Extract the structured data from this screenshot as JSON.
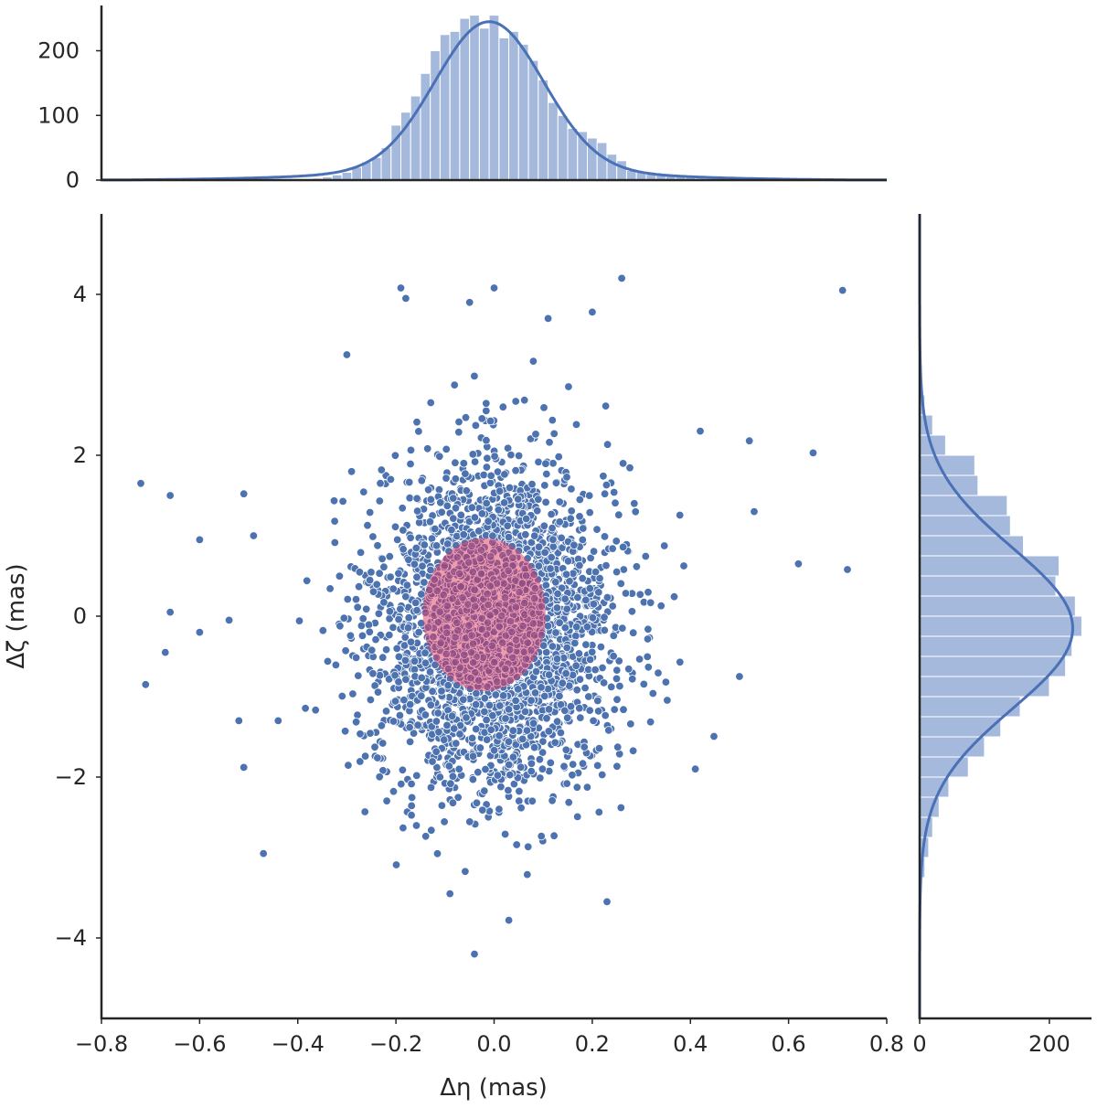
{
  "colors": {
    "points": "#4c72b0",
    "point_edge": "#ffffff",
    "hist_bars": "#a4b9dc",
    "kde_line": "#4a70b6",
    "ellipse_fill": "#e8788f",
    "axes": "#262626",
    "background": "#ffffff"
  },
  "chart_data": [
    {
      "type": "scatter",
      "panel": "joint",
      "xlabel": "Δη (mas)",
      "ylabel": "Δζ (mas)",
      "xlim": [
        -0.8,
        0.8
      ],
      "ylim": [
        -5,
        5
      ],
      "xticks": [
        "−0.8",
        "−0.6",
        "−0.4",
        "−0.2",
        "0.0",
        "0.2",
        "0.4",
        "0.6",
        "0.8"
      ],
      "yticks": [
        "−4",
        "−2",
        "0",
        "2",
        "4"
      ],
      "grid": false,
      "distribution": {
        "n_points": 3000,
        "x_mean": 0.0,
        "x_sd": 0.12,
        "y_mean": -0.15,
        "y_sd": 1.0
      },
      "outliers": [
        [
          -0.72,
          1.65
        ],
        [
          -0.71,
          -0.85
        ],
        [
          -0.66,
          1.5
        ],
        [
          -0.66,
          0.05
        ],
        [
          -0.67,
          -0.45
        ],
        [
          -0.6,
          -0.2
        ],
        [
          -0.6,
          0.95
        ],
        [
          -0.54,
          -0.05
        ],
        [
          -0.52,
          -1.3
        ],
        [
          -0.51,
          1.52
        ],
        [
          -0.51,
          -1.88
        ],
        [
          -0.49,
          1.0
        ],
        [
          -0.3,
          3.25
        ],
        [
          -0.19,
          4.08
        ],
        [
          -0.18,
          3.95
        ],
        [
          0.0,
          4.08
        ],
        [
          -0.05,
          3.9
        ],
        [
          0.2,
          3.78
        ],
        [
          0.26,
          4.2
        ],
        [
          0.71,
          4.05
        ],
        [
          0.11,
          3.7
        ],
        [
          0.42,
          2.3
        ],
        [
          0.52,
          2.18
        ],
        [
          0.65,
          2.03
        ],
        [
          0.53,
          1.3
        ],
        [
          0.62,
          0.65
        ],
        [
          0.72,
          0.58
        ],
        [
          0.5,
          -0.75
        ],
        [
          -0.04,
          -4.2
        ],
        [
          0.03,
          -3.78
        ],
        [
          0.23,
          -3.55
        ],
        [
          -0.09,
          -3.45
        ],
        [
          -0.44,
          -1.3
        ],
        [
          0.41,
          -1.9
        ]
      ],
      "highlight_ellipse": {
        "center": [
          -0.02,
          0.02
        ],
        "semi_axis_x": 0.125,
        "semi_axis_y": 0.95
      }
    },
    {
      "type": "bar",
      "panel": "marginal-x",
      "bin_width": 0.02,
      "x": [
        -0.36,
        -0.34,
        -0.32,
        -0.3,
        -0.28,
        -0.26,
        -0.24,
        -0.22,
        -0.2,
        -0.18,
        -0.16,
        -0.14,
        -0.12,
        -0.1,
        -0.08,
        -0.06,
        -0.04,
        -0.02,
        0.0,
        0.02,
        0.04,
        0.06,
        0.08,
        0.1,
        0.12,
        0.14,
        0.16,
        0.18,
        0.2,
        0.22,
        0.24,
        0.26,
        0.28,
        0.3,
        0.32,
        0.34,
        0.36,
        0.38,
        0.4,
        0.42,
        0.44
      ],
      "values": [
        3,
        5,
        8,
        12,
        20,
        28,
        35,
        50,
        85,
        105,
        130,
        165,
        200,
        225,
        230,
        250,
        255,
        235,
        255,
        220,
        230,
        210,
        185,
        155,
        120,
        100,
        80,
        75,
        65,
        58,
        40,
        30,
        15,
        12,
        10,
        8,
        6,
        5,
        4,
        3,
        2
      ],
      "yticks": [
        "0",
        "100",
        "200"
      ],
      "ylim": [
        0,
        270
      ]
    },
    {
      "type": "bar",
      "panel": "marginal-y",
      "orientation": "horizontal",
      "bin_width": 0.25,
      "y": [
        -3.125,
        -2.875,
        -2.625,
        -2.375,
        -2.125,
        -1.875,
        -1.625,
        -1.375,
        -1.125,
        -0.875,
        -0.625,
        -0.375,
        -0.125,
        0.125,
        0.375,
        0.625,
        0.875,
        1.125,
        1.375,
        1.625,
        1.875,
        2.125,
        2.375,
        2.625
      ],
      "values": [
        8,
        14,
        20,
        30,
        45,
        75,
        100,
        125,
        155,
        200,
        225,
        235,
        250,
        240,
        210,
        215,
        160,
        140,
        135,
        90,
        85,
        40,
        20,
        8
      ],
      "xticks": [
        "0",
        "200"
      ],
      "xlim": [
        0,
        265
      ]
    }
  ]
}
